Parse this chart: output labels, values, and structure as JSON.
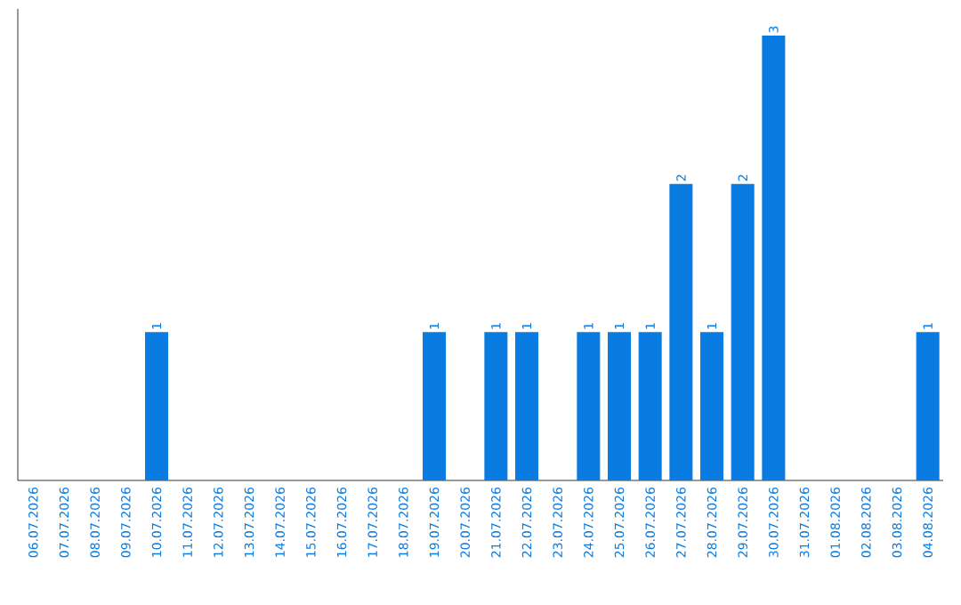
{
  "chart_data": {
    "type": "bar",
    "categories": [
      "06.07.2026",
      "07.07.2026",
      "08.07.2026",
      "09.07.2026",
      "10.07.2026",
      "11.07.2026",
      "12.07.2026",
      "13.07.2026",
      "14.07.2026",
      "15.07.2026",
      "16.07.2026",
      "17.07.2026",
      "18.07.2026",
      "19.07.2026",
      "20.07.2026",
      "21.07.2026",
      "22.07.2026",
      "23.07.2026",
      "24.07.2026",
      "25.07.2026",
      "26.07.2026",
      "27.07.2026",
      "28.07.2026",
      "29.07.2026",
      "30.07.2026",
      "31.07.2026",
      "01.08.2026",
      "02.08.2026",
      "03.08.2026",
      "04.08.2026"
    ],
    "values": [
      0,
      0,
      0,
      0,
      1,
      0,
      0,
      0,
      0,
      0,
      0,
      0,
      0,
      1,
      0,
      1,
      1,
      0,
      1,
      1,
      1,
      2,
      1,
      2,
      3,
      0,
      0,
      0,
      0,
      1
    ],
    "value_labels": [
      null,
      null,
      null,
      null,
      "1",
      null,
      null,
      null,
      null,
      null,
      null,
      null,
      null,
      "1",
      null,
      "1",
      "1",
      null,
      "1",
      "1",
      "1",
      "2",
      "1",
      "2",
      "3",
      null,
      null,
      null,
      null,
      "1"
    ],
    "color": "#0a7be0"
  }
}
